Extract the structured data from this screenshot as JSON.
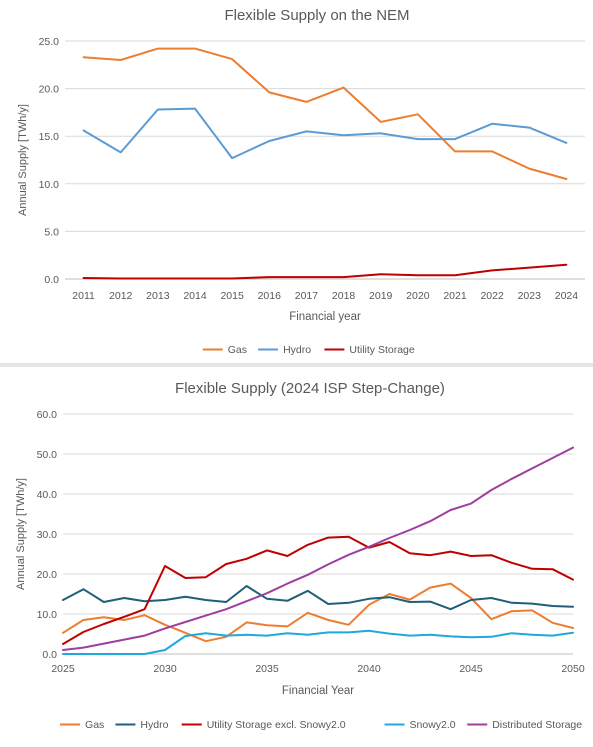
{
  "chart_data": [
    {
      "type": "line",
      "title": "Flexible Supply on the NEM",
      "xlabel": "Financial year",
      "ylabel": "Annual Supply [TWh/y]",
      "ylim": [
        0,
        25
      ],
      "yticks": [
        "0.0",
        "5.0",
        "10.0",
        "15.0",
        "20.0",
        "25.0"
      ],
      "categories": [
        "2011",
        "2012",
        "2013",
        "2014",
        "2015",
        "2016",
        "2017",
        "2018",
        "2019",
        "2020",
        "2021",
        "2022",
        "2023",
        "2024"
      ],
      "grid": "horizontal",
      "legend": "bottom",
      "series": [
        {
          "name": "Gas",
          "color": "#ED7D31",
          "values": [
            23.3,
            23.0,
            24.2,
            24.2,
            23.1,
            19.6,
            18.6,
            20.1,
            16.5,
            17.3,
            13.4,
            13.4,
            11.6,
            10.5
          ]
        },
        {
          "name": "Hydro",
          "color": "#5B9BD5",
          "values": [
            15.6,
            13.3,
            17.8,
            17.9,
            12.7,
            14.5,
            15.5,
            15.1,
            15.3,
            14.7,
            14.7,
            16.3,
            15.9,
            14.3
          ]
        },
        {
          "name": "Utility Storage",
          "color": "#C00000",
          "values": [
            0.1,
            0.05,
            0.05,
            0.05,
            0.05,
            0.2,
            0.2,
            0.2,
            0.5,
            0.4,
            0.4,
            0.9,
            1.2,
            1.5
          ]
        }
      ]
    },
    {
      "type": "line",
      "title": "Flexible Supply (2024 ISP Step-Change)",
      "xlabel": "Financial Year",
      "ylabel": "Annual Supply [TWh/y]",
      "ylim": [
        0,
        60
      ],
      "xlim": [
        2025,
        2050
      ],
      "yticks": [
        "0.0",
        "10.0",
        "20.0",
        "30.0",
        "40.0",
        "50.0",
        "60.0"
      ],
      "xticks": [
        "2025",
        "2030",
        "2035",
        "2040",
        "2045",
        "2050"
      ],
      "x": [
        2025,
        2026,
        2027,
        2028,
        2029,
        2030,
        2031,
        2032,
        2033,
        2034,
        2035,
        2036,
        2037,
        2038,
        2039,
        2040,
        2041,
        2042,
        2043,
        2044,
        2045,
        2046,
        2047,
        2048,
        2049,
        2050
      ],
      "grid": "horizontal",
      "legend": "bottom",
      "series": [
        {
          "name": "Gas",
          "color": "#ED7D31",
          "values": [
            5.3,
            8.5,
            9.2,
            8.5,
            9.7,
            7.3,
            5.3,
            3.2,
            4.3,
            7.9,
            7.2,
            6.9,
            10.3,
            8.5,
            7.3,
            12.3,
            15.0,
            13.6,
            16.6,
            17.6,
            14.0,
            8.7,
            10.7,
            10.9,
            7.8,
            6.5
          ]
        },
        {
          "name": "Hydro",
          "color": "#1F5F7A",
          "values": [
            13.5,
            16.2,
            13.0,
            14.0,
            13.2,
            13.5,
            14.3,
            13.5,
            13.0,
            17.0,
            13.8,
            13.3,
            15.8,
            12.5,
            12.8,
            13.8,
            14.2,
            13.0,
            13.1,
            11.2,
            13.5,
            14.0,
            12.8,
            12.6,
            12.0,
            11.8
          ]
        },
        {
          "name": "Utility Storage excl. Snowy2.0",
          "color": "#C00000",
          "values": [
            2.5,
            5.5,
            7.5,
            9.3,
            11.2,
            22.0,
            19.0,
            19.2,
            22.5,
            23.8,
            25.9,
            24.5,
            27.3,
            29.1,
            29.3,
            26.6,
            28.0,
            25.2,
            24.7,
            25.6,
            24.5,
            24.7,
            22.8,
            21.3,
            21.2,
            18.6
          ]
        },
        {
          "name": "Snowy2.0",
          "color": "#1FA8DC",
          "values": [
            0,
            0,
            0,
            0,
            0,
            1.0,
            4.5,
            5.2,
            4.6,
            4.8,
            4.6,
            5.2,
            4.8,
            5.4,
            5.4,
            5.8,
            5.1,
            4.6,
            4.8,
            4.4,
            4.2,
            4.3,
            5.2,
            4.8,
            4.6,
            5.3
          ]
        },
        {
          "name": "Distributed Storage",
          "color": "#9E3F9E",
          "values": [
            1.0,
            1.6,
            2.6,
            3.6,
            4.6,
            6.4,
            8.0,
            9.6,
            11.2,
            13.2,
            15.2,
            17.6,
            19.8,
            22.4,
            24.8,
            26.8,
            29.0,
            31.0,
            33.2,
            36.0,
            37.6,
            41.0,
            43.8,
            46.4,
            49.0,
            51.6
          ]
        }
      ]
    }
  ]
}
